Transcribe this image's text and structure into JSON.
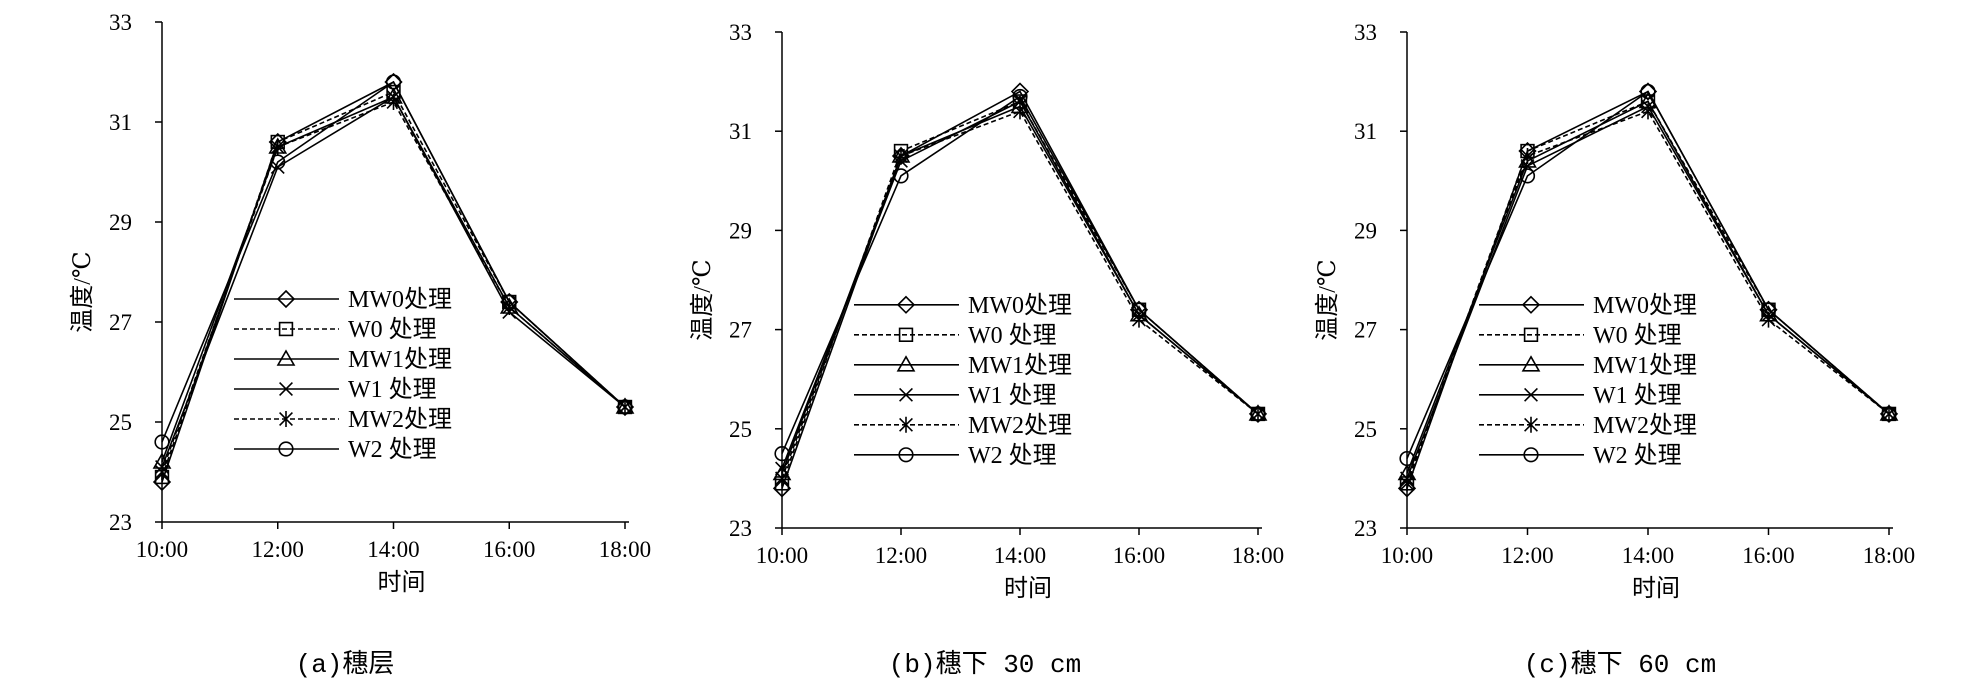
{
  "figure": {
    "captions": [
      "(a)穗层",
      "(b)穗下 30 cm",
      "(c)穗下 60 cm"
    ]
  },
  "chart_data": [
    {
      "type": "line",
      "caption": "(a)穗层",
      "xlabel": "时间",
      "ylabel": "温度/℃",
      "categories": [
        "10:00",
        "12:00",
        "14:00",
        "16:00",
        "18:00"
      ],
      "ylim": [
        23,
        33
      ],
      "yticks": [
        23,
        25,
        27,
        29,
        31,
        33
      ],
      "grid": false,
      "legend_position": "bottom-left",
      "series": [
        {
          "name": "MW0处理",
          "marker": "diamond",
          "dash": "solid",
          "values": [
            23.8,
            30.6,
            31.8,
            27.4,
            25.3
          ]
        },
        {
          "name": "W0  处理",
          "marker": "square",
          "dash": "dashed",
          "values": [
            23.9,
            30.6,
            31.6,
            27.4,
            25.3
          ]
        },
        {
          "name": "MW1处理",
          "marker": "triangle",
          "dash": "solid",
          "values": [
            24.2,
            30.5,
            31.5,
            27.3,
            25.3
          ]
        },
        {
          "name": "W1  处理",
          "marker": "cross",
          "dash": "solid",
          "values": [
            24.1,
            30.1,
            31.5,
            27.2,
            25.3
          ]
        },
        {
          "name": "MW2处理",
          "marker": "asterisk",
          "dash": "dashed",
          "values": [
            24.0,
            30.5,
            31.4,
            27.3,
            25.3
          ]
        },
        {
          "name": "W2  处理",
          "marker": "circle",
          "dash": "solid",
          "values": [
            24.6,
            30.2,
            31.8,
            27.4,
            25.3
          ]
        }
      ]
    },
    {
      "type": "line",
      "caption": "(b)穗下 30 cm",
      "xlabel": "时间",
      "ylabel": "温度/℃",
      "categories": [
        "10:00",
        "12:00",
        "14:00",
        "16:00",
        "18:00"
      ],
      "ylim": [
        23,
        33
      ],
      "yticks": [
        23,
        25,
        27,
        29,
        31,
        33
      ],
      "grid": false,
      "legend_position": "bottom-left",
      "series": [
        {
          "name": "MW0处理",
          "marker": "diamond",
          "dash": "solid",
          "values": [
            23.8,
            30.5,
            31.8,
            27.4,
            25.3
          ]
        },
        {
          "name": "W0  处理",
          "marker": "square",
          "dash": "dashed",
          "values": [
            23.9,
            30.6,
            31.6,
            27.4,
            25.3
          ]
        },
        {
          "name": "MW1处理",
          "marker": "triangle",
          "dash": "solid",
          "values": [
            24.1,
            30.5,
            31.5,
            27.3,
            25.3
          ]
        },
        {
          "name": "W1  处理",
          "marker": "cross",
          "dash": "solid",
          "values": [
            24.2,
            30.4,
            31.6,
            27.3,
            25.3
          ]
        },
        {
          "name": "MW2处理",
          "marker": "asterisk",
          "dash": "dashed",
          "values": [
            24.0,
            30.5,
            31.4,
            27.2,
            25.3
          ]
        },
        {
          "name": "W2  处理",
          "marker": "circle",
          "dash": "solid",
          "values": [
            24.5,
            30.1,
            31.7,
            27.4,
            25.3
          ]
        }
      ]
    },
    {
      "type": "line",
      "caption": "(c)穗下 60 cm",
      "xlabel": "时间",
      "ylabel": "温度/℃",
      "categories": [
        "10:00",
        "12:00",
        "14:00",
        "16:00",
        "18:00"
      ],
      "ylim": [
        23,
        33
      ],
      "yticks": [
        23,
        25,
        27,
        29,
        31,
        33
      ],
      "grid": false,
      "legend_position": "bottom-left",
      "series": [
        {
          "name": "MW0处理",
          "marker": "diamond",
          "dash": "solid",
          "values": [
            23.8,
            30.6,
            31.8,
            27.4,
            25.3
          ]
        },
        {
          "name": "W0  处理",
          "marker": "square",
          "dash": "dashed",
          "values": [
            23.9,
            30.6,
            31.6,
            27.4,
            25.3
          ]
        },
        {
          "name": "MW1处理",
          "marker": "triangle",
          "dash": "solid",
          "values": [
            24.1,
            30.4,
            31.6,
            27.3,
            25.3
          ]
        },
        {
          "name": "W1  处理",
          "marker": "cross",
          "dash": "solid",
          "values": [
            24.0,
            30.3,
            31.5,
            27.3,
            25.3
          ]
        },
        {
          "name": "MW2处理",
          "marker": "asterisk",
          "dash": "dashed",
          "values": [
            23.9,
            30.5,
            31.4,
            27.2,
            25.3
          ]
        },
        {
          "name": "W2  处理",
          "marker": "circle",
          "dash": "solid",
          "values": [
            24.4,
            30.1,
            31.8,
            27.4,
            25.3
          ]
        }
      ]
    }
  ]
}
